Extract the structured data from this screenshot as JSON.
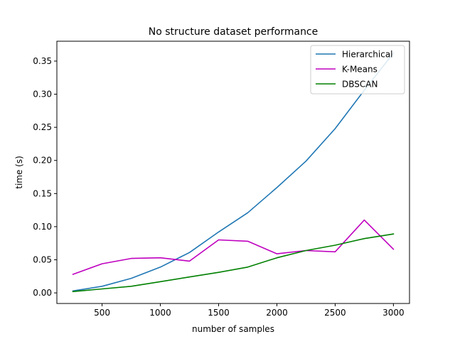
{
  "chart_data": {
    "type": "line",
    "title": "No structure dataset performance",
    "xlabel": "number of samples",
    "ylabel": "time (s)",
    "xlim": [
      112,
      3138
    ],
    "ylim": [
      -0.016,
      0.38
    ],
    "xticks": [
      500,
      1000,
      1500,
      2000,
      2500,
      3000
    ],
    "xtick_labels": [
      "500",
      "1000",
      "1500",
      "2000",
      "2500",
      "3000"
    ],
    "yticks": [
      0.0,
      0.05,
      0.1,
      0.15,
      0.2,
      0.25,
      0.3,
      0.35
    ],
    "ytick_labels": [
      "0.00",
      "0.05",
      "0.10",
      "0.15",
      "0.20",
      "0.25",
      "0.30",
      "0.35"
    ],
    "grid": false,
    "legend_position": "top-right",
    "x": [
      250,
      500,
      750,
      1000,
      1250,
      1500,
      1750,
      2000,
      2250,
      2500,
      2750,
      3000
    ],
    "series": [
      {
        "name": "Hierarchical",
        "color": "#1f77b4",
        "values": [
          0.003,
          0.01,
          0.022,
          0.039,
          0.061,
          0.092,
          0.121,
          0.159,
          0.199,
          0.248,
          0.306,
          0.362
        ]
      },
      {
        "name": "K-Means",
        "color": "#bf00bf",
        "values": [
          0.028,
          0.044,
          0.052,
          0.053,
          0.048,
          0.08,
          0.078,
          0.059,
          0.064,
          0.062,
          0.11,
          0.066
        ]
      },
      {
        "name": "DBSCAN",
        "color": "#008000",
        "values": [
          0.002,
          0.006,
          0.01,
          0.017,
          0.024,
          0.031,
          0.039,
          0.053,
          0.064,
          0.072,
          0.082,
          0.089
        ]
      }
    ]
  }
}
